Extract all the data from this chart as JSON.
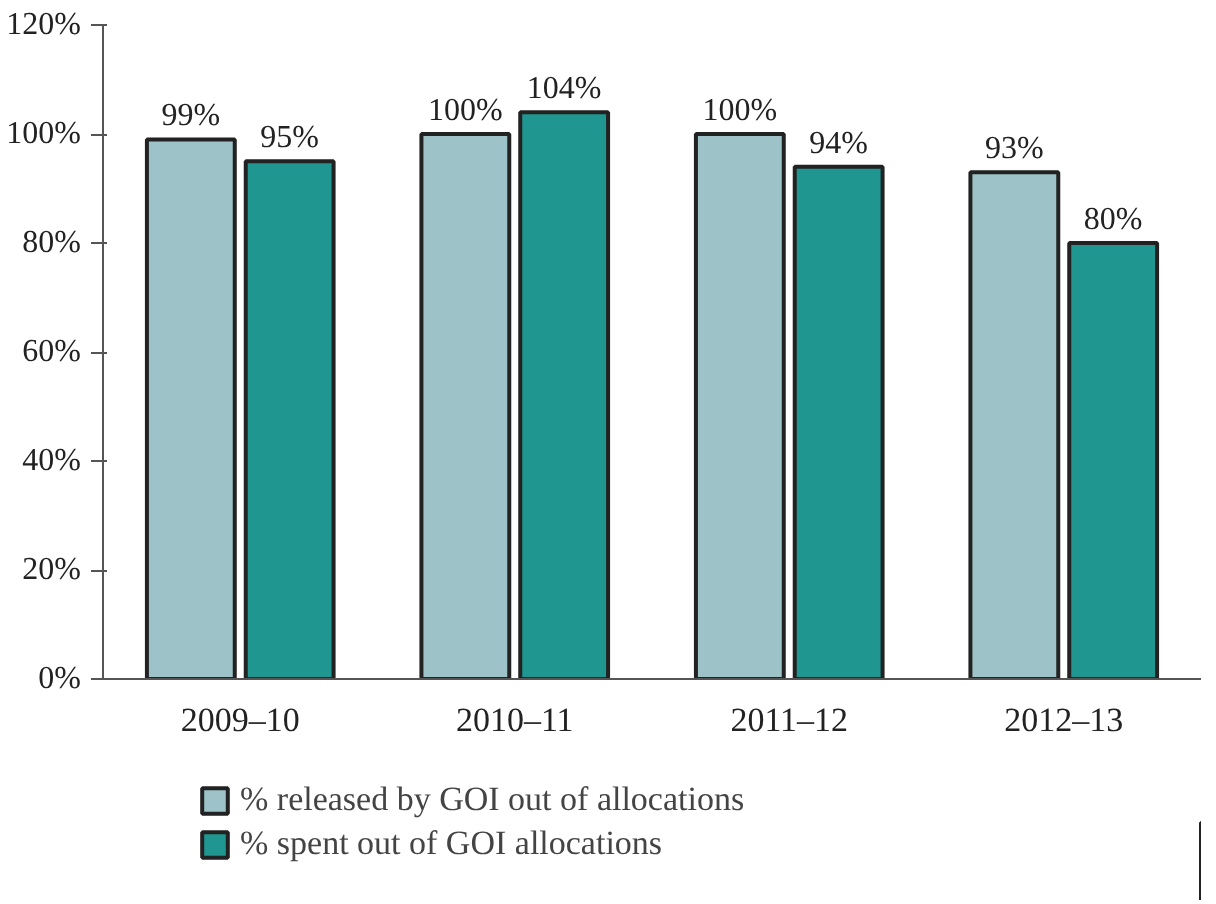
{
  "chart_data": {
    "type": "bar",
    "categories": [
      "2009–10",
      "2010–11",
      "2011–12",
      "2012–13"
    ],
    "series": [
      {
        "name": "% released by GOI out of allocations",
        "color": "#9dc3c8",
        "values": [
          99,
          100,
          100,
          93
        ],
        "value_labels": [
          "99%",
          "100%",
          "100%",
          "93%"
        ]
      },
      {
        "name": "% spent out of GOI allocations",
        "color": "#1f9690",
        "values": [
          95,
          104,
          94,
          80
        ],
        "value_labels": [
          "95%",
          "104%",
          "94%",
          "80%"
        ]
      }
    ],
    "ylim": [
      0,
      120
    ],
    "yticks": [
      {
        "value": 0,
        "label": "0%"
      },
      {
        "value": 20,
        "label": "20%"
      },
      {
        "value": 40,
        "label": "40%"
      },
      {
        "value": 60,
        "label": "60%"
      },
      {
        "value": 80,
        "label": "80%"
      },
      {
        "value": 100,
        "label": "100%"
      },
      {
        "value": 120,
        "label": "120%"
      }
    ],
    "grid": false,
    "legend": "bottom"
  }
}
